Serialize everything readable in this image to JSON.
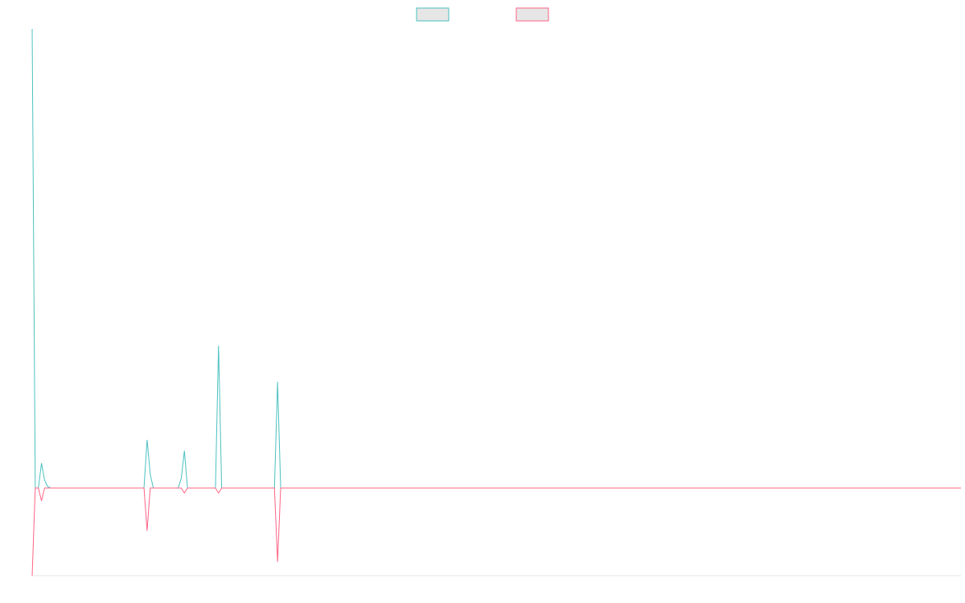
{
  "chart_data": {
    "type": "line",
    "ylim": [
      -19.1,
      100
    ],
    "legend": "top",
    "series": [
      {
        "color": "#4bc0c0",
        "values": [
          100,
          0,
          0,
          5.4,
          1.7,
          0.3,
          0,
          0,
          0,
          0,
          0,
          0,
          0,
          0,
          0,
          0,
          0,
          0,
          0,
          0,
          0,
          0,
          0,
          0,
          0,
          0,
          0,
          0,
          0,
          0,
          0,
          0,
          0,
          0,
          0,
          0,
          0,
          10.5,
          3,
          0,
          0,
          0,
          0,
          0,
          0,
          0,
          0,
          0,
          2.1,
          8.1,
          0,
          0,
          0,
          0,
          0,
          0,
          0,
          0,
          0,
          0,
          31,
          0,
          0,
          0,
          0,
          0,
          0,
          0,
          0,
          0,
          0,
          0,
          0,
          0,
          0,
          0,
          0,
          0,
          0,
          23.1,
          0,
          0,
          0,
          0,
          0,
          0,
          0,
          0,
          0,
          0,
          0,
          0,
          0,
          0,
          0,
          0,
          0,
          0,
          0,
          0,
          0,
          0,
          0,
          0,
          0,
          0,
          0,
          0,
          0,
          0,
          0,
          0,
          0,
          0,
          0,
          0,
          0,
          0,
          0,
          0,
          0,
          0,
          0,
          0,
          0,
          0,
          0,
          0,
          0,
          0,
          0,
          0,
          0,
          0,
          0,
          0,
          0,
          0,
          0,
          0,
          0,
          0,
          0,
          0,
          0,
          0,
          0,
          0,
          0,
          0,
          0,
          0,
          0,
          0,
          0,
          0,
          0,
          0,
          0,
          0,
          0,
          0,
          0,
          0,
          0,
          0,
          0,
          0,
          0,
          0,
          0,
          0,
          0,
          0,
          0,
          0,
          0,
          0,
          0,
          0,
          0,
          0,
          0,
          0,
          0,
          0,
          0,
          0,
          0,
          0,
          0,
          0,
          0,
          0,
          0,
          0,
          0,
          0,
          0,
          0,
          0,
          0,
          0,
          0,
          0,
          0,
          0,
          0,
          0,
          0,
          0,
          0,
          0,
          0,
          0,
          0,
          0,
          0,
          0,
          0,
          0,
          0,
          0,
          0,
          0,
          0,
          0,
          0,
          0,
          0,
          0,
          0,
          0,
          0,
          0,
          0,
          0,
          0,
          0,
          0,
          0,
          0,
          0,
          0,
          0,
          0,
          0,
          0,
          0,
          0,
          0,
          0,
          0,
          0,
          0,
          0,
          0,
          0,
          0,
          0,
          0,
          0,
          0,
          0,
          0,
          0,
          0,
          0,
          0,
          0,
          0,
          0,
          0,
          0,
          0,
          0,
          0,
          0,
          0,
          0,
          0,
          0,
          0,
          0,
          0,
          0,
          0,
          0,
          0,
          0,
          0,
          0,
          0,
          0,
          0,
          0,
          0,
          0,
          0,
          0
        ]
      },
      {
        "color": "#ff6384",
        "values": [
          -19.1,
          0,
          0,
          -2.8,
          0,
          0,
          0,
          0,
          0,
          0,
          0,
          0,
          0,
          0,
          0,
          0,
          0,
          0,
          0,
          0,
          0,
          0,
          0,
          0,
          0,
          0,
          0,
          0,
          0,
          0,
          0,
          0,
          0,
          0,
          0,
          0,
          0,
          -9.3,
          0,
          0,
          0,
          0,
          0,
          0,
          0,
          0,
          0,
          0,
          0,
          -1.1,
          0,
          0,
          0,
          0,
          0,
          0,
          0,
          0,
          0,
          0,
          -1.1,
          0,
          0,
          0,
          0,
          0,
          0,
          0,
          0,
          0,
          0,
          0,
          0,
          0,
          0,
          0,
          0,
          0,
          0,
          -16.1,
          0,
          0,
          0,
          0,
          0,
          0,
          0,
          0,
          0,
          0,
          0,
          0,
          0,
          0,
          0,
          0,
          0,
          0,
          0,
          0,
          0,
          0,
          0,
          0,
          0,
          0,
          0,
          0,
          0,
          0,
          0,
          0,
          0,
          0,
          0,
          0,
          0,
          0,
          0,
          0,
          0,
          0,
          0,
          0,
          0,
          0,
          0,
          0,
          0,
          0,
          0,
          0,
          0,
          0,
          0,
          0,
          0,
          0,
          0,
          0,
          0,
          0,
          0,
          0,
          0,
          0,
          0,
          0,
          0,
          0,
          0,
          0,
          0,
          0,
          0,
          0,
          0,
          0,
          0,
          0,
          0,
          0,
          0,
          0,
          0,
          0,
          0,
          0,
          0,
          0,
          0,
          0,
          0,
          0,
          0,
          0,
          0,
          0,
          0,
          0,
          0,
          0,
          0,
          0,
          0,
          0,
          0,
          0,
          0,
          0,
          0,
          0,
          0,
          0,
          0,
          0,
          0,
          0,
          0,
          0,
          0,
          0,
          0,
          0,
          0,
          0,
          0,
          0,
          0,
          0,
          0,
          0,
          0,
          0,
          0,
          0,
          0,
          0,
          0,
          0,
          0,
          0,
          0,
          0,
          0,
          0,
          0,
          0,
          0,
          0,
          0,
          0,
          0,
          0,
          0,
          0,
          0,
          0,
          0,
          0,
          0,
          0,
          0,
          0,
          0,
          0,
          0,
          0,
          0,
          0,
          0,
          0,
          0,
          0,
          0,
          0,
          0,
          0,
          0,
          0,
          0,
          0,
          0,
          0,
          0,
          0,
          0,
          0,
          0,
          0,
          0,
          0,
          0,
          0,
          0,
          0,
          0,
          0,
          0,
          0,
          0,
          0,
          0,
          0,
          0,
          0,
          0,
          0,
          0,
          0,
          0,
          0,
          0,
          0,
          0,
          0,
          0,
          0,
          0,
          0
        ]
      }
    ]
  }
}
